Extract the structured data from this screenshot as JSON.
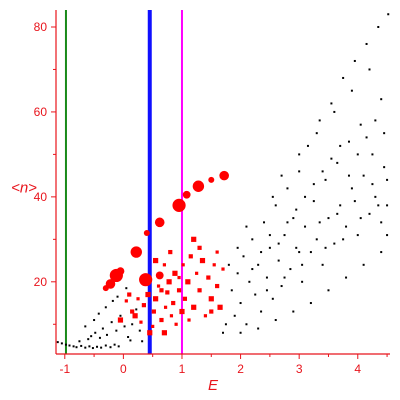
{
  "chart_data": {
    "type": "scatter",
    "title": "",
    "xlabel": "E",
    "ylabel": "<n>",
    "xlim": [
      -1.15,
      4.55
    ],
    "ylim": [
      3,
      84
    ],
    "x_ticks": [
      -1,
      0,
      1,
      2,
      3,
      4
    ],
    "y_ticks": [
      20,
      40,
      60,
      80
    ],
    "grid": false,
    "colors": {
      "axis": "#e8141c",
      "black_points": "#000000",
      "red_points": "#ff0000"
    },
    "vertical_lines": [
      {
        "x": -0.98,
        "color": "#1a8a1a"
      },
      {
        "x": 0.45,
        "color": "#1010ff"
      },
      {
        "x": 1.0,
        "color": "#ff00ff"
      }
    ],
    "series": [
      {
        "color": "#ff0000",
        "marker_scale": "large",
        "points": [
          [
            -0.3,
            18.5
          ],
          [
            -0.22,
            19.5
          ],
          [
            -0.12,
            21.5
          ],
          [
            -0.05,
            22.5
          ],
          [
            0.22,
            27
          ],
          [
            0.4,
            31.5
          ],
          [
            0.62,
            34
          ],
          [
            0.95,
            38
          ],
          [
            1.08,
            40.5
          ],
          [
            1.28,
            42.5
          ],
          [
            1.5,
            44
          ],
          [
            1.72,
            45
          ],
          [
            0.38,
            20.5
          ],
          [
            0.62,
            21.5
          ]
        ]
      },
      {
        "color": "#ff0000",
        "marker_scale": "small",
        "points": [
          [
            0.05,
            15.5
          ],
          [
            0.1,
            17
          ],
          [
            0.2,
            12
          ],
          [
            0.3,
            10.5
          ],
          [
            0.35,
            14.5
          ],
          [
            0.42,
            17
          ],
          [
            0.5,
            9.5
          ],
          [
            0.52,
            13
          ],
          [
            0.55,
            16
          ],
          [
            0.6,
            19
          ],
          [
            0.65,
            11
          ],
          [
            0.7,
            8
          ],
          [
            0.72,
            14
          ],
          [
            0.75,
            17.5
          ],
          [
            0.78,
            20
          ],
          [
            0.82,
            12
          ],
          [
            0.85,
            15
          ],
          [
            0.88,
            22
          ],
          [
            0.9,
            10
          ],
          [
            0.95,
            18
          ],
          [
            1.0,
            13
          ],
          [
            1.02,
            24
          ],
          [
            1.05,
            16
          ],
          [
            1.1,
            20
          ],
          [
            1.12,
            11
          ],
          [
            1.15,
            26
          ],
          [
            1.2,
            14
          ],
          [
            1.25,
            22
          ],
          [
            1.3,
            18
          ],
          [
            1.35,
            25
          ],
          [
            1.4,
            12
          ],
          [
            1.45,
            21
          ],
          [
            1.5,
            16
          ],
          [
            1.55,
            24
          ],
          [
            1.6,
            19
          ],
          [
            1.65,
            14
          ],
          [
            1.7,
            23
          ],
          [
            1.3,
            28
          ],
          [
            0.55,
            25
          ],
          [
            0.7,
            24
          ],
          [
            0.8,
            27
          ],
          [
            1.2,
            30
          ],
          [
            0.95,
            21
          ],
          [
            0.65,
            18
          ],
          [
            0.45,
            8
          ],
          [
            0.25,
            16
          ],
          [
            0.15,
            13
          ],
          [
            -0.05,
            11
          ],
          [
            1.6,
            27
          ],
          [
            1.5,
            13
          ]
        ]
      },
      {
        "color": "#000000",
        "marker_scale": "dot",
        "points": [
          [
            -1.12,
            5.8
          ],
          [
            -1.05,
            5.5
          ],
          [
            -0.98,
            5.2
          ],
          [
            -0.92,
            5.0
          ],
          [
            -0.85,
            4.8
          ],
          [
            -0.8,
            4.6
          ],
          [
            -0.72,
            4.9
          ],
          [
            -0.65,
            4.5
          ],
          [
            -0.58,
            4.8
          ],
          [
            -0.52,
            4.4
          ],
          [
            -0.45,
            4.7
          ],
          [
            -0.38,
            4.5
          ],
          [
            -0.3,
            5.0
          ],
          [
            -0.22,
            4.6
          ],
          [
            -0.15,
            5.2
          ],
          [
            -0.08,
            4.8
          ],
          [
            -0.75,
            6.0
          ],
          [
            -0.6,
            6.5
          ],
          [
            -0.55,
            7.2
          ],
          [
            -0.48,
            8.0
          ],
          [
            -0.4,
            6.8
          ],
          [
            -0.35,
            9.0
          ],
          [
            -0.28,
            7.5
          ],
          [
            -0.2,
            10.5
          ],
          [
            -0.12,
            8.5
          ],
          [
            -0.05,
            12.0
          ],
          [
            0.02,
            9.5
          ],
          [
            0.08,
            7.0
          ],
          [
            0.15,
            10.0
          ],
          [
            0.22,
            13.5
          ],
          [
            0.28,
            8.5
          ],
          [
            0.32,
            6.0
          ],
          [
            -0.65,
            9.5
          ],
          [
            -0.5,
            11.0
          ],
          [
            -0.42,
            12.5
          ],
          [
            -0.3,
            14.0
          ],
          [
            -0.18,
            15.5
          ],
          [
            -0.1,
            16.5
          ],
          [
            0.05,
            18.5
          ],
          [
            0.12,
            6.2
          ],
          [
            1.85,
            18
          ],
          [
            1.9,
            12
          ],
          [
            1.95,
            22
          ],
          [
            2.0,
            15
          ],
          [
            2.05,
            26
          ],
          [
            2.1,
            10
          ],
          [
            2.15,
            20
          ],
          [
            2.2,
            30
          ],
          [
            2.25,
            17
          ],
          [
            2.3,
            24
          ],
          [
            2.35,
            13
          ],
          [
            2.4,
            34
          ],
          [
            2.45,
            21
          ],
          [
            2.5,
            28
          ],
          [
            2.55,
            16
          ],
          [
            2.6,
            38
          ],
          [
            2.65,
            25
          ],
          [
            2.7,
            19
          ],
          [
            2.75,
            31
          ],
          [
            2.8,
            42
          ],
          [
            2.85,
            23
          ],
          [
            2.9,
            35
          ],
          [
            2.95,
            28
          ],
          [
            3.0,
            46
          ],
          [
            3.05,
            20
          ],
          [
            3.1,
            33
          ],
          [
            3.15,
            52
          ],
          [
            3.2,
            27
          ],
          [
            3.25,
            39
          ],
          [
            3.3,
            30
          ],
          [
            3.35,
            58
          ],
          [
            3.4,
            24
          ],
          [
            3.45,
            44
          ],
          [
            3.5,
            35
          ],
          [
            3.55,
            62
          ],
          [
            3.6,
            29
          ],
          [
            3.65,
            48
          ],
          [
            3.7,
            38
          ],
          [
            3.75,
            68
          ],
          [
            3.8,
            33
          ],
          [
            3.85,
            53
          ],
          [
            3.9,
            42
          ],
          [
            3.95,
            72
          ],
          [
            4.0,
            31
          ],
          [
            4.05,
            57
          ],
          [
            4.1,
            45
          ],
          [
            4.15,
            76
          ],
          [
            4.2,
            36
          ],
          [
            4.25,
            50
          ],
          [
            4.3,
            40
          ],
          [
            4.35,
            80
          ],
          [
            4.4,
            34
          ],
          [
            4.45,
            55
          ],
          [
            4.5,
            44
          ],
          [
            4.52,
            83
          ],
          [
            2.2,
            23
          ],
          [
            2.35,
            27
          ],
          [
            2.5,
            31
          ],
          [
            2.65,
            29
          ],
          [
            2.8,
            34
          ],
          [
            2.95,
            37
          ],
          [
            3.1,
            40
          ],
          [
            3.25,
            43
          ],
          [
            3.4,
            46
          ],
          [
            3.55,
            49
          ],
          [
            3.7,
            52
          ],
          [
            3.85,
            45
          ],
          [
            4.0,
            50
          ],
          [
            4.15,
            54
          ],
          [
            4.3,
            58
          ],
          [
            4.45,
            47
          ],
          [
            2.7,
            45
          ],
          [
            3.0,
            50
          ],
          [
            3.3,
            55
          ],
          [
            3.6,
            60
          ],
          [
            3.9,
            65
          ],
          [
            4.2,
            70
          ],
          [
            4.4,
            63
          ],
          [
            2.55,
            40
          ],
          [
            1.95,
            28
          ],
          [
            2.1,
            33
          ],
          [
            2.0,
            8
          ],
          [
            2.3,
            9
          ],
          [
            2.6,
            11
          ],
          [
            2.9,
            13
          ],
          [
            3.2,
            15
          ],
          [
            3.5,
            18
          ],
          [
            3.8,
            21
          ],
          [
            4.1,
            24
          ],
          [
            4.4,
            27
          ],
          [
            4.5,
            31
          ],
          [
            3.0,
            27
          ],
          [
            3.35,
            34
          ],
          [
            3.65,
            36
          ],
          [
            3.95,
            39
          ],
          [
            4.25,
            43
          ],
          [
            4.5,
            38
          ],
          [
            2.45,
            18
          ],
          [
            2.75,
            21
          ],
          [
            3.05,
            24
          ],
          [
            3.45,
            28
          ],
          [
            3.75,
            30
          ],
          [
            4.05,
            35
          ],
          [
            4.35,
            38
          ],
          [
            1.8,
            24
          ],
          [
            1.75,
            10
          ],
          [
            1.7,
            8
          ]
        ]
      }
    ]
  }
}
